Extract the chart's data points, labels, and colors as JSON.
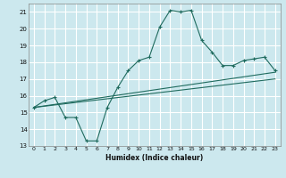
{
  "xlabel": "Humidex (Indice chaleur)",
  "bg_color": "#cce8ee",
  "grid_color": "#ffffff",
  "line_color": "#1f6b5e",
  "xlim": [
    -0.5,
    23.5
  ],
  "ylim": [
    13,
    21.5
  ],
  "yticks": [
    13,
    14,
    15,
    16,
    17,
    18,
    19,
    20,
    21
  ],
  "xticks": [
    0,
    1,
    2,
    3,
    4,
    5,
    6,
    7,
    8,
    9,
    10,
    11,
    12,
    13,
    14,
    15,
    16,
    17,
    18,
    19,
    20,
    21,
    22,
    23
  ],
  "line1_x": [
    0,
    1,
    2,
    3,
    4,
    5,
    6,
    7,
    8,
    9,
    10,
    11,
    12,
    13,
    14,
    15,
    16,
    17,
    18,
    19,
    20,
    21,
    22,
    23
  ],
  "line1_y": [
    15.3,
    15.7,
    15.9,
    14.7,
    14.7,
    13.3,
    13.3,
    15.3,
    16.5,
    17.5,
    18.1,
    18.3,
    20.1,
    21.1,
    21.0,
    21.1,
    19.3,
    18.6,
    17.8,
    17.8,
    18.1,
    18.2,
    18.3,
    17.5
  ],
  "line2_x": [
    0,
    23
  ],
  "line2_y": [
    15.3,
    17.4
  ],
  "line3_x": [
    0,
    23
  ],
  "line3_y": [
    15.3,
    17.0
  ]
}
